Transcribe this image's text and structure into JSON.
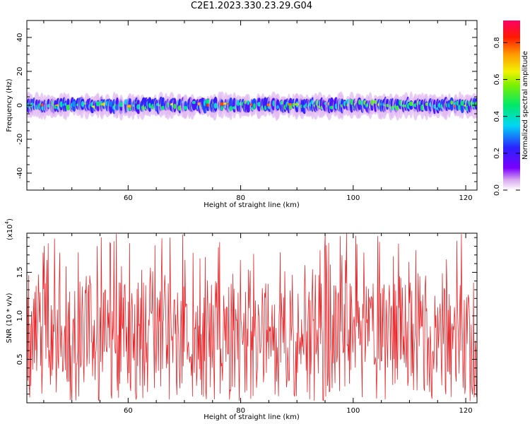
{
  "title": "C2E1.2023.330.23.29.G04",
  "chart_data": [
    {
      "type": "heatmap",
      "xlabel": "Height of straight line (km)",
      "ylabel": "Frequency (Hz)",
      "xlim": [
        42,
        122
      ],
      "ylim": [
        -50,
        50
      ],
      "xticks": [
        60,
        80,
        100,
        120
      ],
      "yticks": [
        -40,
        -20,
        0,
        20,
        40
      ],
      "colorbar": {
        "label": "Normalized spectral amplitude",
        "range": [
          0.0,
          0.92
        ],
        "ticks": [
          0.0,
          0.2,
          0.4,
          0.6,
          0.8
        ]
      },
      "band": {
        "center_hz": 0,
        "typical_halfwidth_hz": 5,
        "peak_amplitude": 0.92
      }
    },
    {
      "type": "line",
      "xlabel": "Height of straight line (km)",
      "ylabel": "SNR (10 * v/v)",
      "multiplier_label": "(x10",
      "multiplier_exp": "4",
      "xlim": [
        42,
        122
      ],
      "ylim": [
        0,
        1.95
      ],
      "xticks": [
        60,
        80,
        100,
        120
      ],
      "yticks": [
        0.5,
        1.0,
        1.5
      ],
      "ytick_labels": [
        "0.5",
        "1.0",
        "1.5"
      ],
      "series": [
        {
          "color": "#e8262a",
          "y_min": 0.02,
          "y_max": 1.95,
          "typical": 0.9
        }
      ]
    }
  ]
}
